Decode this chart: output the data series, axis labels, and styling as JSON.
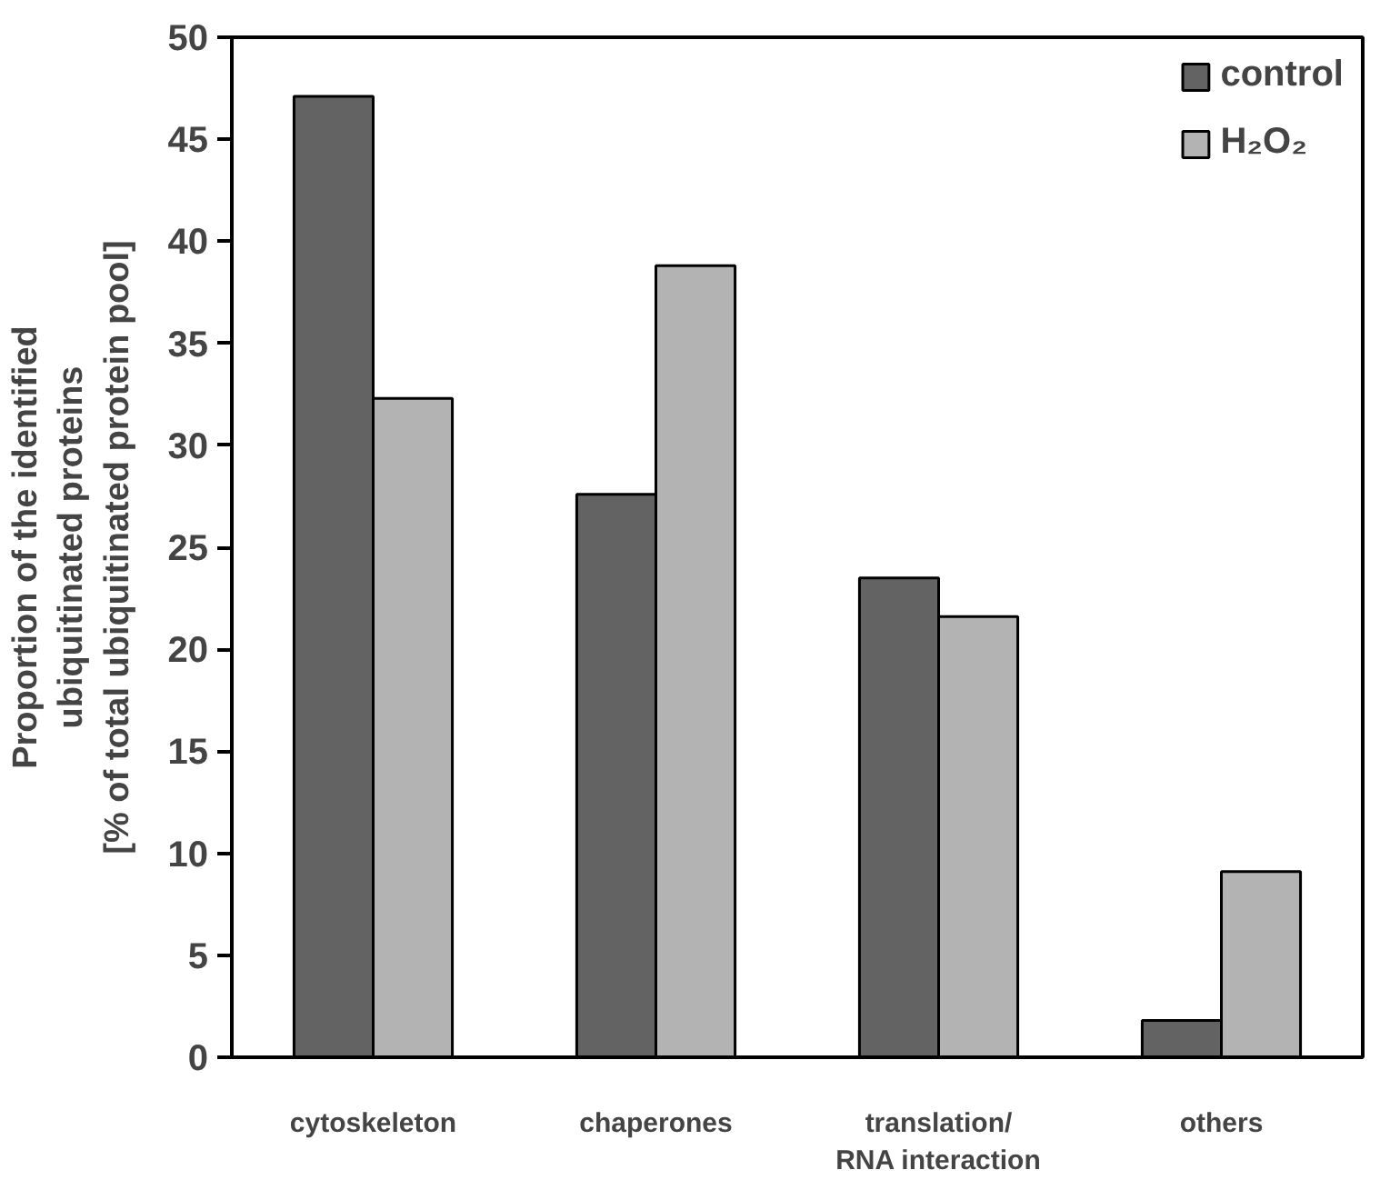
{
  "chart_data": {
    "type": "bar",
    "categories": [
      "cytoskeleton",
      "chaperones",
      "translation/\nRNA interaction",
      "others"
    ],
    "ylabel": "Proportion of the identified\nubiquitinated proteins\n[% of total ubiquitinated protein pool]",
    "series": [
      {
        "name": "control",
        "color": "#636363",
        "values": [
          47.1,
          27.6,
          23.5,
          1.8
        ]
      },
      {
        "name": "H₂O₂",
        "color": "#b3b3b3",
        "values": [
          32.3,
          38.8,
          21.6,
          9.1
        ]
      }
    ],
    "ylim": [
      0,
      50
    ],
    "yticks": [
      0,
      5,
      10,
      15,
      20,
      25,
      30,
      35,
      40,
      45,
      50
    ],
    "grid": false,
    "legend": "top right"
  }
}
